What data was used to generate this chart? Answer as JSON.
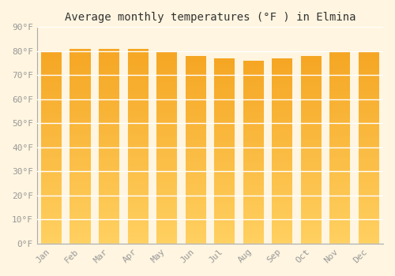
{
  "title": "Average monthly temperatures (°F ) in Elmina",
  "months": [
    "Jan",
    "Feb",
    "Mar",
    "Apr",
    "May",
    "Jun",
    "Jul",
    "Aug",
    "Sep",
    "Oct",
    "Nov",
    "Dec"
  ],
  "values": [
    80,
    81,
    81,
    81,
    80,
    78,
    77,
    76,
    77,
    78,
    80,
    80
  ],
  "bar_color_top": "#F5A623",
  "bar_color_bottom": "#FFD060",
  "background_color": "#FFF5E0",
  "grid_color": "#FFFFFF",
  "text_color": "#999999",
  "ylim": [
    0,
    90
  ],
  "yticks": [
    0,
    10,
    20,
    30,
    40,
    50,
    60,
    70,
    80,
    90
  ],
  "title_fontsize": 10,
  "tick_fontsize": 8,
  "bar_width": 0.72,
  "gradient_steps": 100
}
